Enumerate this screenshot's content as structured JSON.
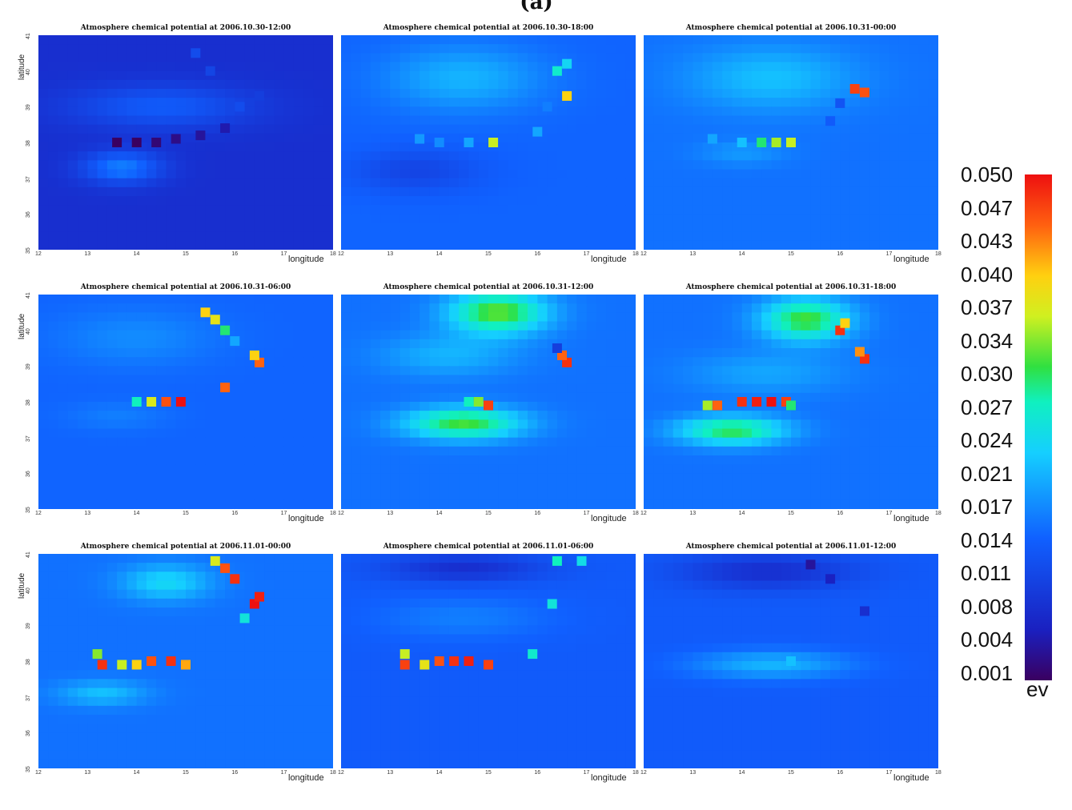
{
  "figure_label": "(a)",
  "chart_data": {
    "type": "heatmap",
    "colorbar": {
      "ticks": [
        "0.050",
        "0.047",
        "0.043",
        "0.040",
        "0.037",
        "0.034",
        "0.030",
        "0.027",
        "0.024",
        "0.021",
        "0.017",
        "0.014",
        "0.011",
        "0.008",
        "0.004",
        "0.001"
      ],
      "unit": "ev",
      "range": [
        0.001,
        0.05
      ],
      "colormap": "jet"
    },
    "x_ticks": [
      "12",
      "13",
      "14",
      "15",
      "16",
      "17",
      "18"
    ],
    "y_ticks": [
      "35",
      "36",
      "37",
      "38",
      "39",
      "40",
      "41"
    ],
    "xlabel": "longitude",
    "ylabel": "latitude",
    "xlim": [
      12,
      18
    ],
    "ylim": [
      35,
      41
    ],
    "panels": [
      {
        "title": "Atmosphere chemical potential at 2006.10.30-12:00",
        "base": 0.008,
        "blobs": [
          [
            13.7,
            37.3,
            0.8,
            0.45,
            0.009
          ],
          [
            14.5,
            39.0,
            1.8,
            0.6,
            0.006
          ]
        ],
        "cells": [
          [
            13.6,
            38.0,
            0.001
          ],
          [
            14.0,
            38.0,
            0.001
          ],
          [
            14.4,
            38.0,
            0.002
          ],
          [
            14.8,
            38.1,
            0.003
          ],
          [
            15.3,
            38.2,
            0.004
          ],
          [
            15.8,
            38.4,
            0.005
          ],
          [
            16.1,
            39.0,
            0.012
          ],
          [
            16.5,
            39.3,
            0.01
          ],
          [
            15.5,
            40.0,
            0.011
          ],
          [
            15.2,
            40.5,
            0.012
          ]
        ]
      },
      {
        "title": "Atmosphere chemical potential at 2006.10.30-18:00",
        "base": 0.015,
        "blobs": [
          [
            14.5,
            39.8,
            1.6,
            0.9,
            0.006
          ],
          [
            13.5,
            37.2,
            1.3,
            0.6,
            -0.004
          ]
        ],
        "cells": [
          [
            16.6,
            39.3,
            0.04
          ],
          [
            16.4,
            40.0,
            0.027
          ],
          [
            16.6,
            40.2,
            0.024
          ],
          [
            15.1,
            38.0,
            0.036
          ],
          [
            14.6,
            38.0,
            0.02
          ],
          [
            14.0,
            38.0,
            0.018
          ],
          [
            13.6,
            38.1,
            0.019
          ],
          [
            16.0,
            38.3,
            0.02
          ],
          [
            16.2,
            39.0,
            0.017
          ]
        ]
      },
      {
        "title": "Atmosphere chemical potential at 2006.10.31-00:00",
        "base": 0.016,
        "blobs": [
          [
            14.6,
            39.8,
            1.7,
            0.9,
            0.006
          ],
          [
            14.0,
            37.7,
            0.9,
            0.35,
            0.003
          ]
        ],
        "cells": [
          [
            16.5,
            39.4,
            0.046
          ],
          [
            16.3,
            39.5,
            0.047
          ],
          [
            14.7,
            38.0,
            0.035
          ],
          [
            15.0,
            38.0,
            0.036
          ],
          [
            14.4,
            38.0,
            0.03
          ],
          [
            14.0,
            38.0,
            0.022
          ],
          [
            13.4,
            38.1,
            0.02
          ],
          [
            15.8,
            38.6,
            0.014
          ],
          [
            16.0,
            39.1,
            0.013
          ]
        ]
      },
      {
        "title": "Atmosphere chemical potential at 2006.10.31-06:00",
        "base": 0.015,
        "blobs": [
          [
            14.0,
            39.8,
            1.6,
            0.8,
            0.003
          ],
          [
            13.6,
            37.6,
            1.0,
            0.4,
            0.002
          ]
        ],
        "cells": [
          [
            14.6,
            38.0,
            0.046
          ],
          [
            14.9,
            38.0,
            0.05
          ],
          [
            14.3,
            38.0,
            0.037
          ],
          [
            14.0,
            38.0,
            0.028
          ],
          [
            16.5,
            39.1,
            0.045
          ],
          [
            16.4,
            39.3,
            0.04
          ],
          [
            15.8,
            38.4,
            0.045
          ],
          [
            15.4,
            40.5,
            0.04
          ],
          [
            15.6,
            40.3,
            0.038
          ],
          [
            15.8,
            40.0,
            0.03
          ],
          [
            16.0,
            39.7,
            0.02
          ]
        ]
      },
      {
        "title": "Atmosphere chemical potential at 2006.10.31-12:00",
        "base": 0.016,
        "blobs": [
          [
            14.5,
            37.4,
            1.2,
            0.45,
            0.016
          ],
          [
            15.2,
            40.5,
            1.0,
            0.6,
            0.017
          ],
          [
            14.2,
            39.3,
            1.4,
            0.6,
            0.005
          ]
        ],
        "cells": [
          [
            16.6,
            39.1,
            0.048
          ],
          [
            16.5,
            39.3,
            0.045
          ],
          [
            16.4,
            39.5,
            0.01
          ],
          [
            15.0,
            37.9,
            0.047
          ],
          [
            14.8,
            38.0,
            0.034
          ],
          [
            14.6,
            38.0,
            0.028
          ]
        ]
      },
      {
        "title": "Atmosphere chemical potential at 2006.10.31-18:00",
        "base": 0.016,
        "blobs": [
          [
            13.8,
            37.2,
            1.1,
            0.4,
            0.015
          ],
          [
            15.3,
            40.3,
            0.9,
            0.6,
            0.016
          ],
          [
            14.5,
            38.8,
            1.6,
            0.6,
            0.004
          ]
        ],
        "cells": [
          [
            14.0,
            38.0,
            0.048
          ],
          [
            14.3,
            38.0,
            0.049
          ],
          [
            14.6,
            38.0,
            0.05
          ],
          [
            14.9,
            38.0,
            0.047
          ],
          [
            15.0,
            37.9,
            0.03
          ],
          [
            13.5,
            37.9,
            0.045
          ],
          [
            13.3,
            37.9,
            0.035
          ],
          [
            16.5,
            39.2,
            0.048
          ],
          [
            16.4,
            39.4,
            0.043
          ],
          [
            16.0,
            40.0,
            0.048
          ],
          [
            16.1,
            40.2,
            0.04
          ]
        ]
      },
      {
        "title": "Atmosphere chemical potential at 2006.11.01-00:00",
        "base": 0.016,
        "blobs": [
          [
            13.3,
            37.1,
            0.9,
            0.35,
            0.006
          ],
          [
            14.6,
            40.2,
            0.9,
            0.5,
            0.008
          ]
        ],
        "cells": [
          [
            13.3,
            37.9,
            0.048
          ],
          [
            13.7,
            37.9,
            0.036
          ],
          [
            14.0,
            37.9,
            0.04
          ],
          [
            14.3,
            38.0,
            0.046
          ],
          [
            14.7,
            38.0,
            0.048
          ],
          [
            15.0,
            37.9,
            0.042
          ],
          [
            13.2,
            38.2,
            0.034
          ],
          [
            16.4,
            39.6,
            0.05
          ],
          [
            16.5,
            39.8,
            0.049
          ],
          [
            16.0,
            40.3,
            0.048
          ],
          [
            15.8,
            40.6,
            0.046
          ],
          [
            15.6,
            40.8,
            0.037
          ],
          [
            16.2,
            39.2,
            0.026
          ]
        ]
      },
      {
        "title": "Atmosphere chemical potential at 2006.11.01-06:00",
        "base": 0.014,
        "blobs": [
          [
            14.5,
            39.2,
            1.8,
            0.6,
            0.003
          ],
          [
            14.5,
            40.6,
            1.6,
            0.4,
            -0.006
          ]
        ],
        "cells": [
          [
            13.3,
            37.9,
            0.047
          ],
          [
            13.7,
            37.9,
            0.038
          ],
          [
            14.0,
            38.0,
            0.046
          ],
          [
            14.3,
            38.0,
            0.048
          ],
          [
            14.6,
            38.0,
            0.049
          ],
          [
            15.0,
            37.9,
            0.047
          ],
          [
            13.3,
            38.2,
            0.036
          ],
          [
            16.3,
            39.6,
            0.026
          ],
          [
            16.4,
            40.8,
            0.028
          ],
          [
            16.9,
            40.8,
            0.025
          ],
          [
            15.9,
            38.2,
            0.027
          ]
        ]
      },
      {
        "title": "Atmosphere chemical potential at 2006.11.01-12:00",
        "base": 0.014,
        "blobs": [
          [
            14.6,
            37.9,
            1.6,
            0.4,
            0.007
          ],
          [
            14.5,
            40.5,
            1.8,
            0.5,
            -0.006
          ]
        ],
        "cells": [
          [
            16.5,
            39.4,
            0.008
          ],
          [
            15.4,
            40.7,
            0.004
          ],
          [
            15.8,
            40.3,
            0.006
          ],
          [
            15.0,
            38.0,
            0.022
          ]
        ]
      }
    ]
  }
}
